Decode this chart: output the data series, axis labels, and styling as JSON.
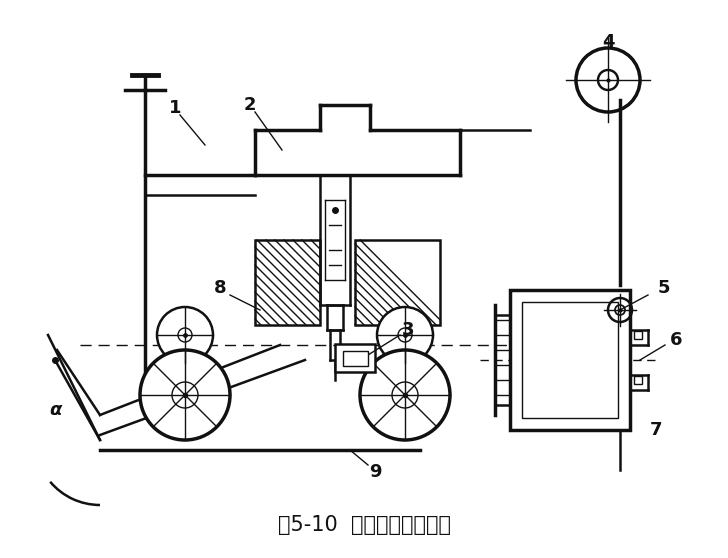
{
  "title": "图5-10  双边辊式送料装置",
  "title_fontsize": 15,
  "bg_color": "#ffffff",
  "line_color": "#111111",
  "fig_width": 7.28,
  "fig_height": 5.58
}
